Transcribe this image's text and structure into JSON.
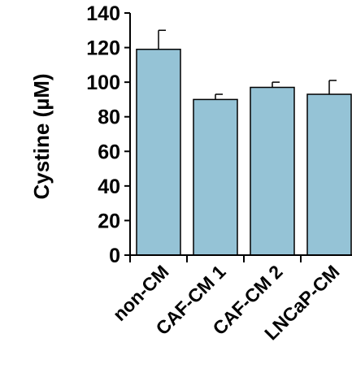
{
  "chart_data": {
    "type": "bar",
    "title": "",
    "xlabel": "",
    "ylabel": "Cystine (µM)",
    "categories": [
      "non-CM",
      "CAF-CM 1",
      "CAF-CM 2",
      "LNCaP-CM"
    ],
    "values": [
      119,
      90,
      97,
      93
    ],
    "errors": [
      11,
      3,
      3,
      8
    ],
    "ylim": [
      0,
      140
    ],
    "yticks": [
      0,
      20,
      40,
      60,
      80,
      100,
      120,
      140
    ],
    "grid": false,
    "legend": "none",
    "bar_color": "#95c3d6",
    "bar_edge_color": "#000000"
  }
}
